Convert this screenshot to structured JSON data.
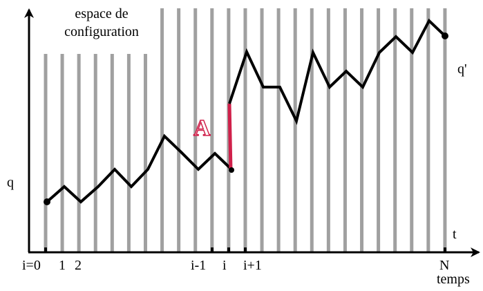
{
  "title": {
    "line1": "espace de",
    "line2": "configuration"
  },
  "labels": {
    "q_start": "q",
    "q_end": "q'",
    "segment": "A",
    "axis_t": "t",
    "axis_time": "temps"
  },
  "ticks": [
    "i=0",
    "1",
    "2",
    "i-1",
    "i",
    "i+1",
    "N"
  ]
}
